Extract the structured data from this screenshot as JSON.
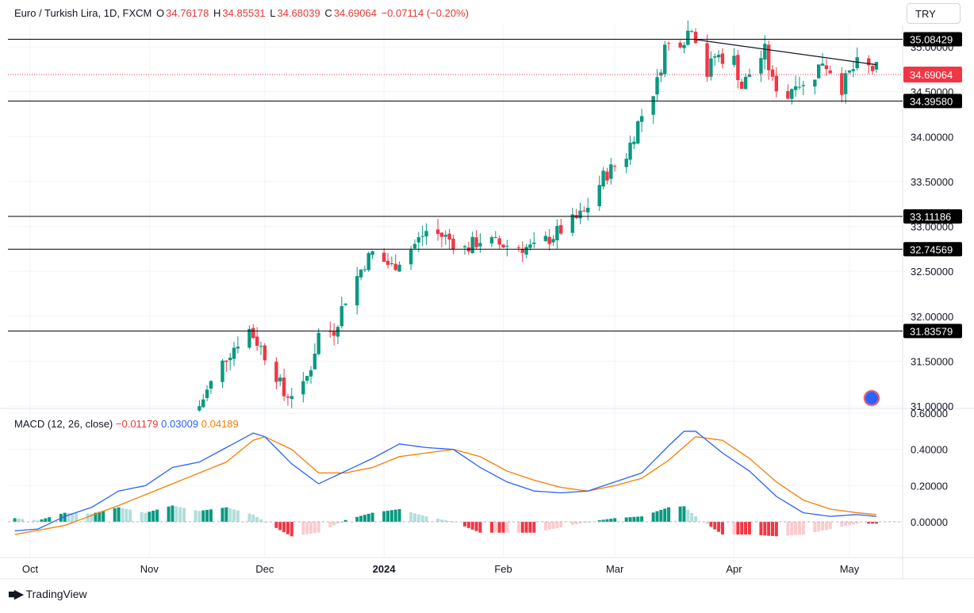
{
  "header": {
    "title": "Euro / Turkish Lira, 1D, FXCM",
    "o_label": "O",
    "o_value": "34.76178",
    "h_label": "H",
    "h_value": "34.85531",
    "l_label": "L",
    "l_value": "34.68039",
    "c_label": "C",
    "c_value": "34.69064",
    "change": "−0.07114 (−0.20%)"
  },
  "currency_label": "TRY",
  "macd_header": {
    "title": "MACD (12, 26, close)",
    "hist_value": "−0.01179",
    "macd_value": "0.03009",
    "signal_value": "0.04189"
  },
  "footer": {
    "brand": "TradingView"
  },
  "colors": {
    "up": "#089981",
    "down": "#f23645",
    "up_light": "#b2dfdb",
    "down_light": "#fccbcd",
    "macd_line": "#2962ff",
    "signal_line": "#f57c00",
    "hline": "#000000"
  },
  "chart_data": [
    {
      "type": "candlestick",
      "title": "Euro / Turkish Lira, 1D, FXCM",
      "price_axis": {
        "ticks": [
          31.0,
          31.5,
          32.0,
          32.5,
          33.0,
          33.5,
          34.0,
          34.5,
          35.0
        ],
        "tick_labels": [
          "31.00000",
          "31.50000",
          "32.00000",
          "32.50000",
          "33.00000",
          "33.50000",
          "34.00000",
          "34.50000",
          "35.00000"
        ],
        "range": [
          30.98,
          35.42
        ]
      },
      "time_axis": {
        "labels": [
          "Oct",
          "Nov",
          "Dec",
          "2024",
          "Feb",
          "Mar",
          "Apr",
          "May"
        ],
        "bold_label": "2024"
      },
      "horizontal_levels": [
        {
          "value": 35.08429,
          "label": "35.08429"
        },
        {
          "value": 34.3958,
          "label": "34.39580"
        },
        {
          "value": 33.11186,
          "label": "33.11186"
        },
        {
          "value": 32.74569,
          "label": "32.74569"
        },
        {
          "value": 31.83579,
          "label": "31.83579"
        }
      ],
      "last_price": {
        "value": 34.69064,
        "label": "34.69064"
      },
      "trendline": {
        "from": {
          "date": "2024-03-22",
          "price": 35.08
        },
        "to": {
          "date": "2024-05-08",
          "price": 34.8
        }
      },
      "anchors": [
        [
          "2023-11-14",
          31.0
        ],
        [
          "2023-11-17",
          31.25
        ],
        [
          "2023-11-21",
          31.55
        ],
        [
          "2023-11-24",
          31.72
        ],
        [
          "2023-11-27",
          31.85
        ],
        [
          "2023-11-30",
          31.65
        ],
        [
          "2023-12-04",
          31.35
        ],
        [
          "2023-12-06",
          31.12
        ],
        [
          "2023-12-11",
          31.2
        ],
        [
          "2023-12-13",
          31.45
        ],
        [
          "2023-12-15",
          31.8
        ],
        [
          "2023-12-19",
          31.85
        ],
        [
          "2023-12-22",
          32.2
        ],
        [
          "2023-12-27",
          32.6
        ],
        [
          "2023-12-29",
          32.7
        ],
        [
          "2024-01-03",
          32.55
        ],
        [
          "2024-01-08",
          32.75
        ],
        [
          "2024-01-12",
          32.95
        ],
        [
          "2024-01-17",
          32.88
        ],
        [
          "2024-01-22",
          32.75
        ],
        [
          "2024-01-26",
          32.85
        ],
        [
          "2024-01-31",
          32.8
        ],
        [
          "2024-02-05",
          32.78
        ],
        [
          "2024-02-09",
          32.75
        ],
        [
          "2024-02-14",
          32.9
        ],
        [
          "2024-02-19",
          33.05
        ],
        [
          "2024-02-22",
          33.15
        ],
        [
          "2024-02-27",
          33.55
        ],
        [
          "2024-03-04",
          33.8
        ],
        [
          "2024-03-07",
          34.15
        ],
        [
          "2024-03-12",
          34.6
        ],
        [
          "2024-03-14",
          35.0
        ],
        [
          "2024-03-19",
          35.1
        ],
        [
          "2024-03-21",
          35.25
        ],
        [
          "2024-03-25",
          34.7
        ],
        [
          "2024-03-27",
          34.9
        ],
        [
          "2024-04-01",
          34.85
        ],
        [
          "2024-04-03",
          34.55
        ],
        [
          "2024-04-05",
          34.7
        ],
        [
          "2024-04-09",
          34.95
        ],
        [
          "2024-04-11",
          34.6
        ],
        [
          "2024-04-15",
          34.45
        ],
        [
          "2024-04-17",
          34.65
        ],
        [
          "2024-04-19",
          34.55
        ],
        [
          "2024-04-22",
          34.7
        ],
        [
          "2024-04-24",
          34.85
        ],
        [
          "2024-04-26",
          34.75
        ],
        [
          "2024-04-29",
          34.55
        ],
        [
          "2024-05-01",
          34.7
        ],
        [
          "2024-05-03",
          34.8
        ],
        [
          "2024-05-07",
          34.75
        ]
      ],
      "candles_start": "2023-11-14",
      "candles_end": "2024-05-08"
    },
    {
      "type": "macd",
      "title": "MACD (12, 26, close)",
      "y_axis": {
        "ticks": [
          0.0,
          0.2,
          0.4,
          0.6
        ],
        "tick_labels": [
          "0.00000",
          "0.20000",
          "0.40000",
          "0.60000"
        ],
        "range": [
          -0.13,
          0.62
        ]
      },
      "macd_anchors": [
        [
          "2023-09-27",
          -0.05
        ],
        [
          "2023-10-03",
          -0.04
        ],
        [
          "2023-10-10",
          0.03
        ],
        [
          "2023-10-17",
          0.08
        ],
        [
          "2023-10-24",
          0.17
        ],
        [
          "2023-10-31",
          0.2
        ],
        [
          "2023-11-07",
          0.3
        ],
        [
          "2023-11-14",
          0.33
        ],
        [
          "2023-11-21",
          0.41
        ],
        [
          "2023-11-28",
          0.49
        ],
        [
          "2023-12-01",
          0.47
        ],
        [
          "2023-12-08",
          0.32
        ],
        [
          "2023-12-15",
          0.21
        ],
        [
          "2023-12-22",
          0.28
        ],
        [
          "2023-12-29",
          0.35
        ],
        [
          "2024-01-05",
          0.43
        ],
        [
          "2024-01-12",
          0.41
        ],
        [
          "2024-01-19",
          0.4
        ],
        [
          "2024-01-26",
          0.3
        ],
        [
          "2024-02-02",
          0.22
        ],
        [
          "2024-02-09",
          0.17
        ],
        [
          "2024-02-16",
          0.16
        ],
        [
          "2024-02-23",
          0.17
        ],
        [
          "2024-03-01",
          0.22
        ],
        [
          "2024-03-08",
          0.27
        ],
        [
          "2024-03-15",
          0.42
        ],
        [
          "2024-03-19",
          0.5
        ],
        [
          "2024-03-22",
          0.5
        ],
        [
          "2024-03-29",
          0.38
        ],
        [
          "2024-04-05",
          0.28
        ],
        [
          "2024-04-12",
          0.14
        ],
        [
          "2024-04-19",
          0.05
        ],
        [
          "2024-04-26",
          0.03
        ],
        [
          "2024-05-03",
          0.04
        ],
        [
          "2024-05-08",
          0.03
        ]
      ],
      "signal_anchors": [
        [
          "2023-09-27",
          -0.07
        ],
        [
          "2023-10-10",
          -0.02
        ],
        [
          "2023-10-24",
          0.09
        ],
        [
          "2023-11-07",
          0.21
        ],
        [
          "2023-11-21",
          0.33
        ],
        [
          "2023-11-28",
          0.45
        ],
        [
          "2023-12-01",
          0.47
        ],
        [
          "2023-12-08",
          0.4
        ],
        [
          "2023-12-15",
          0.27
        ],
        [
          "2023-12-22",
          0.27
        ],
        [
          "2023-12-29",
          0.3
        ],
        [
          "2024-01-05",
          0.36
        ],
        [
          "2024-01-19",
          0.4
        ],
        [
          "2024-01-26",
          0.36
        ],
        [
          "2024-02-02",
          0.28
        ],
        [
          "2024-02-09",
          0.23
        ],
        [
          "2024-02-16",
          0.19
        ],
        [
          "2024-02-23",
          0.17
        ],
        [
          "2024-03-01",
          0.2
        ],
        [
          "2024-03-08",
          0.24
        ],
        [
          "2024-03-15",
          0.34
        ],
        [
          "2024-03-22",
          0.47
        ],
        [
          "2024-03-29",
          0.45
        ],
        [
          "2024-04-05",
          0.35
        ],
        [
          "2024-04-12",
          0.22
        ],
        [
          "2024-04-19",
          0.12
        ],
        [
          "2024-04-26",
          0.07
        ],
        [
          "2024-05-03",
          0.05
        ],
        [
          "2024-05-08",
          0.04
        ]
      ]
    }
  ]
}
